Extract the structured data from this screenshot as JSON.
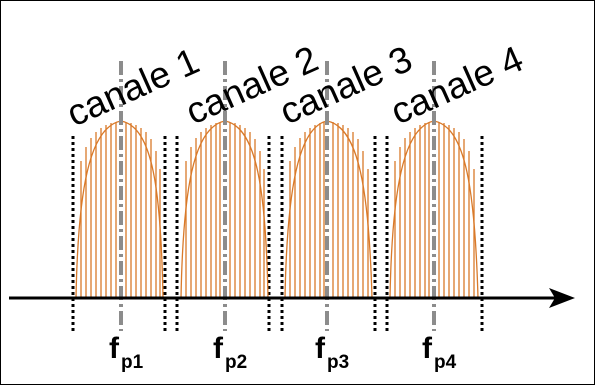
{
  "colors": {
    "band_stroke": "#d97a2a",
    "centre_line": "#8c8c8c",
    "guard_line": "#000000",
    "axis": "#000000",
    "background": "#ffffff"
  },
  "channels": [
    {
      "label": "canale 1",
      "freq_base": "f",
      "freq_sub": "p1"
    },
    {
      "label": "canale 2",
      "freq_base": "f",
      "freq_sub": "p2"
    },
    {
      "label": "canale 3",
      "freq_base": "f",
      "freq_sub": "p3"
    },
    {
      "label": "canale 4",
      "freq_base": "f",
      "freq_sub": "p4"
    }
  ]
}
